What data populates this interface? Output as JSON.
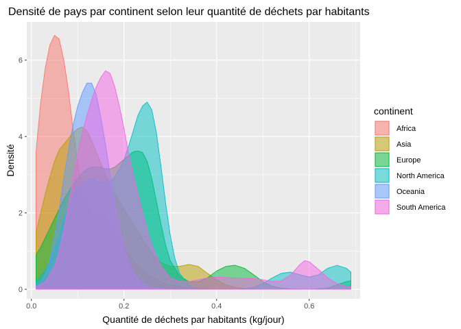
{
  "chart_data": {
    "type": "area",
    "title": "Densité de pays par continent selon leur quantité de déchets par habitants",
    "xlabel": "Quantité de déchets par habitants (kg/jour)",
    "ylabel": "Densité",
    "xlim": [
      -0.01,
      0.71
    ],
    "ylim": [
      -0.25,
      7.0
    ],
    "x_ticks": [
      0.0,
      0.2,
      0.4,
      0.6
    ],
    "x_tick_labels": [
      "0.0",
      "0.2",
      "0.4",
      "0.6"
    ],
    "y_ticks": [
      0,
      2,
      4,
      6
    ],
    "y_tick_labels": [
      "0",
      "2",
      "4",
      "6"
    ],
    "grid": true,
    "background": "#ebebeb",
    "legend": {
      "title": "continent",
      "position": "right"
    },
    "series": [
      {
        "name": "Africa",
        "color": "#f8766d",
        "points": [
          [
            0.01,
            3.6
          ],
          [
            0.02,
            4.9
          ],
          [
            0.03,
            5.8
          ],
          [
            0.04,
            6.4
          ],
          [
            0.05,
            6.65
          ],
          [
            0.06,
            6.55
          ],
          [
            0.07,
            6.0
          ],
          [
            0.08,
            5.2
          ],
          [
            0.09,
            4.2
          ],
          [
            0.1,
            3.3
          ],
          [
            0.11,
            2.6
          ],
          [
            0.12,
            2.2
          ],
          [
            0.13,
            2.0
          ],
          [
            0.14,
            1.95
          ],
          [
            0.15,
            1.95
          ],
          [
            0.16,
            1.9
          ],
          [
            0.17,
            1.8
          ],
          [
            0.18,
            1.6
          ],
          [
            0.19,
            1.35
          ],
          [
            0.2,
            1.1
          ],
          [
            0.22,
            0.75
          ],
          [
            0.24,
            0.5
          ],
          [
            0.26,
            0.35
          ],
          [
            0.28,
            0.2
          ],
          [
            0.3,
            0.12
          ],
          [
            0.32,
            0.06
          ],
          [
            0.35,
            0.03
          ],
          [
            0.4,
            0.01
          ],
          [
            0.5,
            0.0
          ],
          [
            0.6,
            0.0
          ],
          [
            0.69,
            0.0
          ]
        ]
      },
      {
        "name": "Asia",
        "color": "#b79f00",
        "points": [
          [
            0.01,
            1.5
          ],
          [
            0.02,
            2.0
          ],
          [
            0.03,
            2.5
          ],
          [
            0.04,
            2.95
          ],
          [
            0.05,
            3.35
          ],
          [
            0.06,
            3.65
          ],
          [
            0.07,
            3.8
          ],
          [
            0.08,
            3.95
          ],
          [
            0.09,
            4.1
          ],
          [
            0.1,
            4.2
          ],
          [
            0.11,
            4.25
          ],
          [
            0.12,
            4.15
          ],
          [
            0.13,
            3.9
          ],
          [
            0.14,
            3.6
          ],
          [
            0.15,
            3.3
          ],
          [
            0.16,
            3.0
          ],
          [
            0.17,
            2.75
          ],
          [
            0.18,
            2.5
          ],
          [
            0.19,
            2.3
          ],
          [
            0.2,
            2.1
          ],
          [
            0.22,
            1.7
          ],
          [
            0.24,
            1.3
          ],
          [
            0.26,
            0.95
          ],
          [
            0.28,
            0.7
          ],
          [
            0.3,
            0.6
          ],
          [
            0.32,
            0.6
          ],
          [
            0.34,
            0.65
          ],
          [
            0.36,
            0.6
          ],
          [
            0.38,
            0.42
          ],
          [
            0.4,
            0.25
          ],
          [
            0.42,
            0.12
          ],
          [
            0.44,
            0.05
          ],
          [
            0.46,
            0.02
          ],
          [
            0.5,
            0.0
          ],
          [
            0.6,
            0.0
          ],
          [
            0.69,
            0.0
          ]
        ]
      },
      {
        "name": "Europe",
        "color": "#00ba38",
        "points": [
          [
            0.01,
            0.9
          ],
          [
            0.02,
            1.1
          ],
          [
            0.03,
            1.35
          ],
          [
            0.04,
            1.6
          ],
          [
            0.05,
            1.85
          ],
          [
            0.06,
            2.1
          ],
          [
            0.07,
            2.35
          ],
          [
            0.08,
            2.55
          ],
          [
            0.09,
            2.75
          ],
          [
            0.1,
            2.9
          ],
          [
            0.11,
            3.05
          ],
          [
            0.12,
            3.15
          ],
          [
            0.13,
            3.2
          ],
          [
            0.14,
            3.2
          ],
          [
            0.15,
            3.2
          ],
          [
            0.16,
            3.15
          ],
          [
            0.17,
            3.15
          ],
          [
            0.18,
            3.2
          ],
          [
            0.19,
            3.3
          ],
          [
            0.2,
            3.4
          ],
          [
            0.21,
            3.5
          ],
          [
            0.22,
            3.6
          ],
          [
            0.23,
            3.62
          ],
          [
            0.24,
            3.58
          ],
          [
            0.25,
            3.35
          ],
          [
            0.26,
            2.9
          ],
          [
            0.27,
            2.3
          ],
          [
            0.28,
            1.7
          ],
          [
            0.29,
            1.15
          ],
          [
            0.3,
            0.75
          ],
          [
            0.32,
            0.35
          ],
          [
            0.34,
            0.2
          ],
          [
            0.36,
            0.2
          ],
          [
            0.38,
            0.3
          ],
          [
            0.4,
            0.48
          ],
          [
            0.42,
            0.6
          ],
          [
            0.44,
            0.63
          ],
          [
            0.46,
            0.55
          ],
          [
            0.48,
            0.38
          ],
          [
            0.5,
            0.2
          ],
          [
            0.52,
            0.08
          ],
          [
            0.54,
            0.03
          ],
          [
            0.56,
            0.01
          ],
          [
            0.6,
            0.0
          ],
          [
            0.64,
            0.03
          ],
          [
            0.66,
            0.12
          ],
          [
            0.68,
            0.2
          ],
          [
            0.69,
            0.22
          ]
        ]
      },
      {
        "name": "North America",
        "color": "#00bfc4",
        "points": [
          [
            0.01,
            0.2
          ],
          [
            0.02,
            0.35
          ],
          [
            0.03,
            0.5
          ],
          [
            0.04,
            0.75
          ],
          [
            0.05,
            1.05
          ],
          [
            0.06,
            1.4
          ],
          [
            0.07,
            1.8
          ],
          [
            0.08,
            2.15
          ],
          [
            0.09,
            2.45
          ],
          [
            0.1,
            2.65
          ],
          [
            0.11,
            2.75
          ],
          [
            0.12,
            2.85
          ],
          [
            0.13,
            2.9
          ],
          [
            0.14,
            2.85
          ],
          [
            0.15,
            2.8
          ],
          [
            0.16,
            2.8
          ],
          [
            0.17,
            2.85
          ],
          [
            0.18,
            2.95
          ],
          [
            0.19,
            3.15
          ],
          [
            0.2,
            3.4
          ],
          [
            0.21,
            3.75
          ],
          [
            0.22,
            4.15
          ],
          [
            0.23,
            4.55
          ],
          [
            0.24,
            4.8
          ],
          [
            0.25,
            4.9
          ],
          [
            0.26,
            4.7
          ],
          [
            0.27,
            4.1
          ],
          [
            0.28,
            3.2
          ],
          [
            0.29,
            2.25
          ],
          [
            0.3,
            1.4
          ],
          [
            0.31,
            0.8
          ],
          [
            0.32,
            0.42
          ],
          [
            0.34,
            0.1
          ],
          [
            0.36,
            0.02
          ],
          [
            0.4,
            0.0
          ],
          [
            0.45,
            0.0
          ],
          [
            0.48,
            0.05
          ],
          [
            0.5,
            0.15
          ],
          [
            0.52,
            0.3
          ],
          [
            0.54,
            0.42
          ],
          [
            0.56,
            0.45
          ],
          [
            0.58,
            0.38
          ],
          [
            0.6,
            0.32
          ],
          [
            0.62,
            0.38
          ],
          [
            0.64,
            0.55
          ],
          [
            0.66,
            0.63
          ],
          [
            0.68,
            0.55
          ],
          [
            0.69,
            0.45
          ]
        ]
      },
      {
        "name": "Oceania",
        "color": "#619cff",
        "points": [
          [
            0.01,
            0.1
          ],
          [
            0.02,
            0.2
          ],
          [
            0.03,
            0.4
          ],
          [
            0.04,
            0.8
          ],
          [
            0.05,
            1.4
          ],
          [
            0.06,
            2.1
          ],
          [
            0.07,
            2.9
          ],
          [
            0.08,
            3.65
          ],
          [
            0.09,
            4.3
          ],
          [
            0.1,
            4.8
          ],
          [
            0.11,
            5.15
          ],
          [
            0.12,
            5.4
          ],
          [
            0.13,
            5.4
          ],
          [
            0.14,
            5.1
          ],
          [
            0.15,
            4.5
          ],
          [
            0.16,
            3.8
          ],
          [
            0.17,
            3.0
          ],
          [
            0.18,
            2.25
          ],
          [
            0.19,
            1.6
          ],
          [
            0.2,
            1.1
          ],
          [
            0.21,
            0.7
          ],
          [
            0.22,
            0.42
          ],
          [
            0.24,
            0.14
          ],
          [
            0.26,
            0.04
          ],
          [
            0.3,
            0.0
          ],
          [
            0.4,
            0.0
          ],
          [
            0.5,
            0.0
          ],
          [
            0.6,
            0.0
          ],
          [
            0.69,
            0.0
          ]
        ]
      },
      {
        "name": "South America",
        "color": "#f564e3",
        "points": [
          [
            0.01,
            0.05
          ],
          [
            0.03,
            0.2
          ],
          [
            0.05,
            0.6
          ],
          [
            0.06,
            1.0
          ],
          [
            0.07,
            1.55
          ],
          [
            0.08,
            2.2
          ],
          [
            0.09,
            2.9
          ],
          [
            0.1,
            3.55
          ],
          [
            0.11,
            4.1
          ],
          [
            0.12,
            4.55
          ],
          [
            0.13,
            4.95
          ],
          [
            0.14,
            5.3
          ],
          [
            0.15,
            5.55
          ],
          [
            0.16,
            5.72
          ],
          [
            0.17,
            5.65
          ],
          [
            0.18,
            5.3
          ],
          [
            0.19,
            4.8
          ],
          [
            0.2,
            4.2
          ],
          [
            0.21,
            3.55
          ],
          [
            0.22,
            3.0
          ],
          [
            0.23,
            2.5
          ],
          [
            0.24,
            2.0
          ],
          [
            0.25,
            1.55
          ],
          [
            0.26,
            1.15
          ],
          [
            0.28,
            0.6
          ],
          [
            0.3,
            0.3
          ],
          [
            0.32,
            0.2
          ],
          [
            0.34,
            0.2
          ],
          [
            0.36,
            0.25
          ],
          [
            0.38,
            0.3
          ],
          [
            0.4,
            0.32
          ],
          [
            0.44,
            0.3
          ],
          [
            0.48,
            0.28
          ],
          [
            0.5,
            0.25
          ],
          [
            0.52,
            0.2
          ],
          [
            0.54,
            0.22
          ],
          [
            0.56,
            0.38
          ],
          [
            0.58,
            0.65
          ],
          [
            0.59,
            0.75
          ],
          [
            0.6,
            0.72
          ],
          [
            0.62,
            0.52
          ],
          [
            0.64,
            0.3
          ],
          [
            0.66,
            0.15
          ],
          [
            0.68,
            0.08
          ],
          [
            0.69,
            0.06
          ]
        ]
      }
    ]
  }
}
